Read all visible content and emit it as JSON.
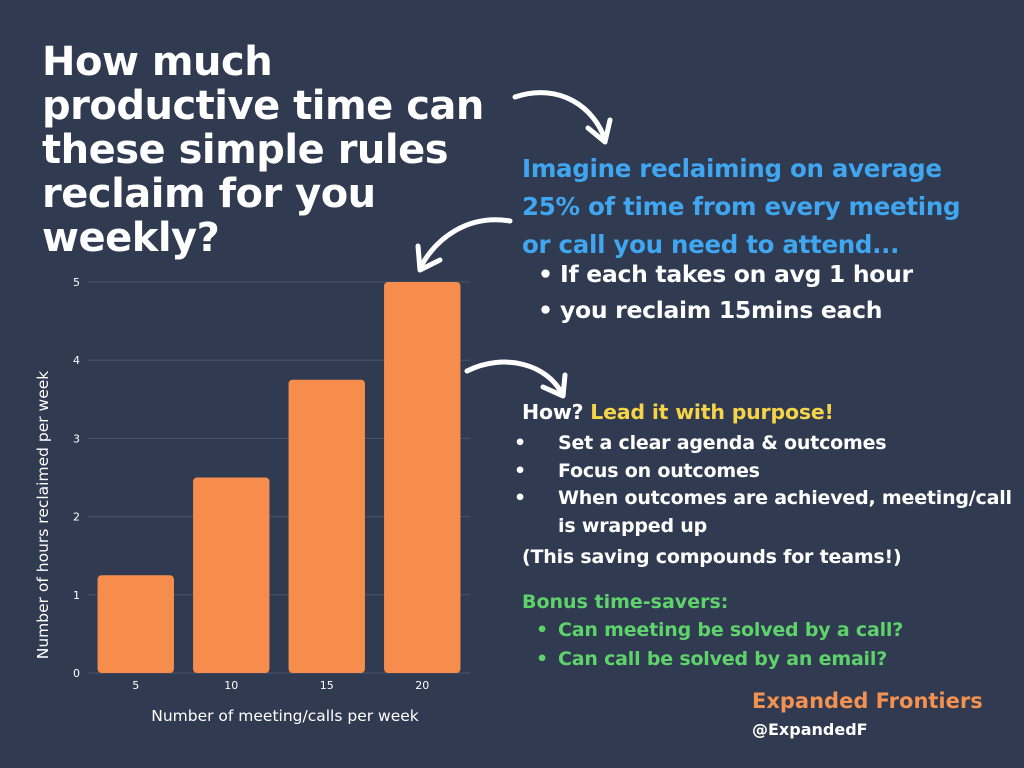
{
  "title": "How much productive time can these simple rules reclaim for you weekly?",
  "intro": {
    "text": "Imagine reclaiming on average 25% of time from every meeting or call you need to attend...",
    "items": [
      "If each takes on avg 1 hour",
      "you reclaim 15mins each"
    ]
  },
  "how": {
    "prefix": "How?",
    "lead": "Lead it with purpose!",
    "items": [
      "Set a clear agenda & outcomes",
      "Focus on outcomes",
      "When outcomes are achieved, meeting/call is wrapped up"
    ],
    "note": "(This saving compounds for teams!)"
  },
  "bonus": {
    "title": "Bonus time-savers:",
    "items": [
      "Can meeting be solved by a call?",
      "Can call be solved by an email?"
    ]
  },
  "brand": {
    "name": "Expanded Frontiers",
    "handle": "@ExpandedF"
  },
  "colors": {
    "background": "#303a50",
    "bar": "#f68d4d",
    "intro": "#3fa6ef",
    "lead": "#f6d447",
    "bonus": "#5fd36b",
    "brand": "#f39150"
  },
  "chart_data": {
    "type": "bar",
    "categories": [
      "5",
      "10",
      "15",
      "20"
    ],
    "values": [
      1.25,
      2.5,
      3.75,
      5
    ],
    "xlabel": "Number of meeting/calls per week",
    "ylabel": "Number of hours reclaimed per week",
    "ylim": [
      0,
      5
    ],
    "yticks": [
      0,
      1,
      2,
      3,
      4,
      5
    ],
    "grid": true,
    "legend": "none"
  }
}
